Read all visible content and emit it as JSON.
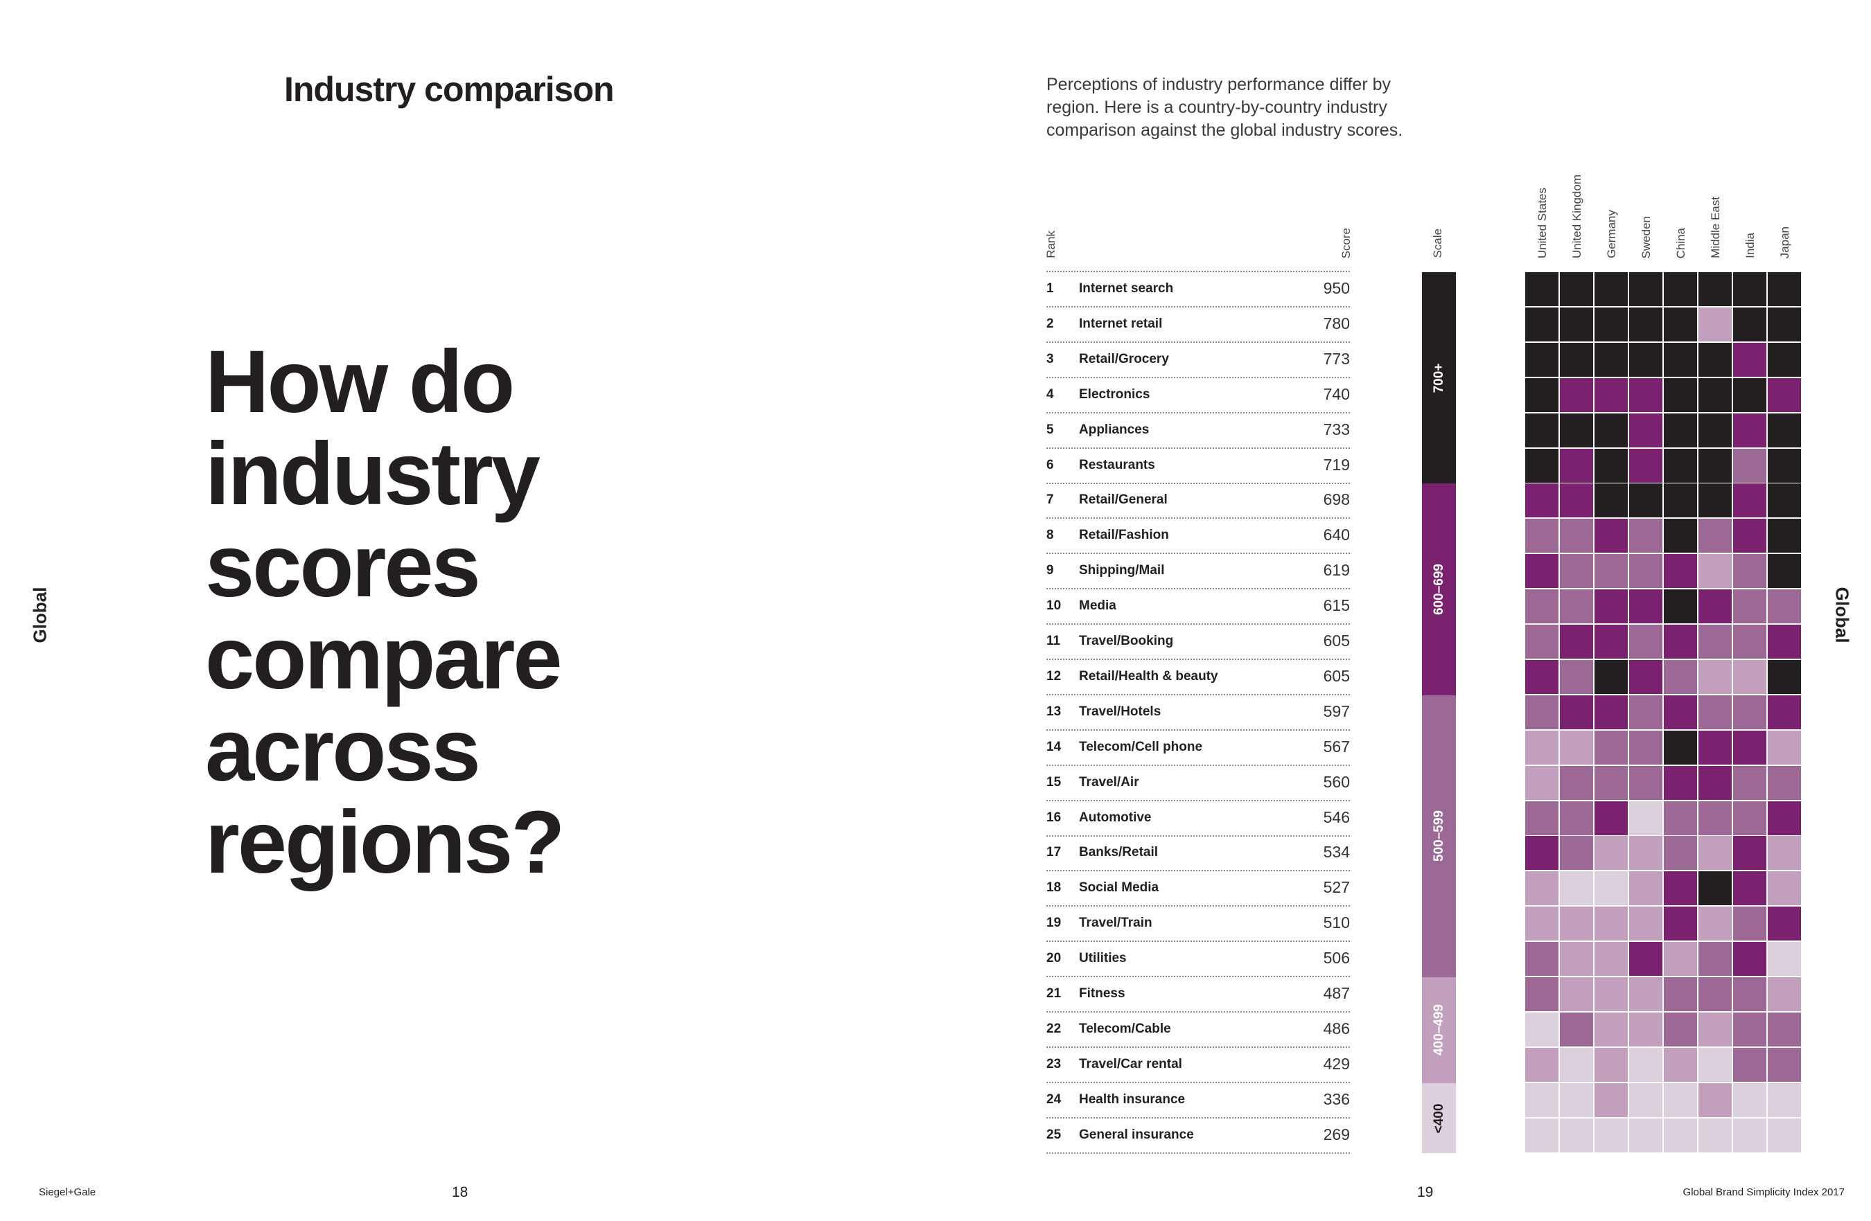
{
  "left_page": {
    "section_title": "Industry comparison",
    "headline": [
      "How do",
      "industry",
      "scores",
      "compare",
      "across",
      "regions?"
    ],
    "side_label": "Global",
    "footer_brand": "Siegel+Gale",
    "page_number": "18"
  },
  "right_page": {
    "intro": "Perceptions of industry performance differ by region. Here is a country-by-country industry comparison against the global industry scores.",
    "side_label": "Global",
    "footer_title": "Global Brand Simplicity Index 2017",
    "page_number": "19"
  },
  "table": {
    "rank_header": "Rank",
    "score_header": "Score",
    "scale_header": "Scale",
    "countries": [
      "United States",
      "United Kingdom",
      "Germany",
      "Sweden",
      "China",
      "Middle East",
      "India",
      "Japan"
    ],
    "rows": [
      {
        "rank": "1",
        "name": "Internet search",
        "score": "950"
      },
      {
        "rank": "2",
        "name": "Internet retail",
        "score": "780"
      },
      {
        "rank": "3",
        "name": "Retail/Grocery",
        "score": "773"
      },
      {
        "rank": "4",
        "name": "Electronics",
        "score": "740"
      },
      {
        "rank": "5",
        "name": "Appliances",
        "score": "733"
      },
      {
        "rank": "6",
        "name": "Restaurants",
        "score": "719"
      },
      {
        "rank": "7",
        "name": "Retail/General",
        "score": "698"
      },
      {
        "rank": "8",
        "name": "Retail/Fashion",
        "score": "640"
      },
      {
        "rank": "9",
        "name": "Shipping/Mail",
        "score": "619"
      },
      {
        "rank": "10",
        "name": "Media",
        "score": "615"
      },
      {
        "rank": "11",
        "name": "Travel/Booking",
        "score": "605"
      },
      {
        "rank": "12",
        "name": "Retail/Health & beauty",
        "score": "605"
      },
      {
        "rank": "13",
        "name": "Travel/Hotels",
        "score": "597"
      },
      {
        "rank": "14",
        "name": "Telecom/Cell phone",
        "score": "567"
      },
      {
        "rank": "15",
        "name": "Travel/Air",
        "score": "560"
      },
      {
        "rank": "16",
        "name": "Automotive",
        "score": "546"
      },
      {
        "rank": "17",
        "name": "Banks/Retail",
        "score": "534"
      },
      {
        "rank": "18",
        "name": "Social Media",
        "score": "527"
      },
      {
        "rank": "19",
        "name": "Travel/Train",
        "score": "510"
      },
      {
        "rank": "20",
        "name": "Utilities",
        "score": "506"
      },
      {
        "rank": "21",
        "name": "Fitness",
        "score": "487"
      },
      {
        "rank": "22",
        "name": "Telecom/Cable",
        "score": "486"
      },
      {
        "rank": "23",
        "name": "Travel/Car rental",
        "score": "429"
      },
      {
        "rank": "24",
        "name": "Health insurance",
        "score": "336"
      },
      {
        "rank": "25",
        "name": "General insurance",
        "score": "269"
      }
    ],
    "scale": [
      {
        "label": "700+",
        "rows": 6,
        "level": 0
      },
      {
        "label": "600–699",
        "rows": 6,
        "level": 1
      },
      {
        "label": "500–599",
        "rows": 8,
        "level": 2
      },
      {
        "label": "400–499",
        "rows": 3,
        "level": 3
      },
      {
        "label": "<400",
        "rows": 2,
        "level": 4
      }
    ],
    "level_colors": [
      "#231f20",
      "#7a2170",
      "#9c6896",
      "#c19fbd",
      "#ddd0dd"
    ],
    "heatmap_levels": [
      [
        0,
        0,
        0,
        0,
        0,
        0,
        0,
        0
      ],
      [
        0,
        0,
        0,
        0,
        0,
        3,
        0,
        0
      ],
      [
        0,
        0,
        0,
        0,
        0,
        0,
        1,
        0
      ],
      [
        0,
        1,
        1,
        1,
        0,
        0,
        0,
        1
      ],
      [
        0,
        0,
        0,
        1,
        0,
        0,
        1,
        0
      ],
      [
        0,
        1,
        0,
        1,
        0,
        0,
        2,
        0
      ],
      [
        1,
        1,
        0,
        0,
        0,
        0,
        1,
        0
      ],
      [
        2,
        2,
        1,
        2,
        0,
        2,
        1,
        0
      ],
      [
        1,
        2,
        2,
        2,
        1,
        3,
        2,
        0
      ],
      [
        2,
        2,
        1,
        1,
        0,
        1,
        2,
        2
      ],
      [
        2,
        1,
        1,
        2,
        1,
        2,
        2,
        1
      ],
      [
        1,
        2,
        0,
        1,
        2,
        3,
        3,
        0
      ],
      [
        2,
        1,
        1,
        2,
        1,
        2,
        2,
        1
      ],
      [
        3,
        3,
        2,
        2,
        0,
        1,
        1,
        3
      ],
      [
        3,
        2,
        2,
        2,
        1,
        1,
        2,
        2
      ],
      [
        2,
        2,
        1,
        4,
        2,
        2,
        2,
        1
      ],
      [
        1,
        2,
        3,
        3,
        2,
        3,
        1,
        3
      ],
      [
        3,
        4,
        4,
        3,
        1,
        0,
        1,
        3
      ],
      [
        3,
        3,
        3,
        3,
        1,
        3,
        2,
        1
      ],
      [
        2,
        3,
        3,
        1,
        3,
        2,
        1,
        4
      ],
      [
        2,
        3,
        3,
        3,
        2,
        2,
        2,
        3
      ],
      [
        4,
        2,
        3,
        3,
        2,
        3,
        2,
        2
      ],
      [
        3,
        4,
        3,
        4,
        3,
        4,
        2,
        2
      ],
      [
        4,
        4,
        3,
        4,
        4,
        3,
        4,
        4
      ],
      [
        4,
        4,
        4,
        4,
        4,
        4,
        4,
        4
      ]
    ]
  }
}
